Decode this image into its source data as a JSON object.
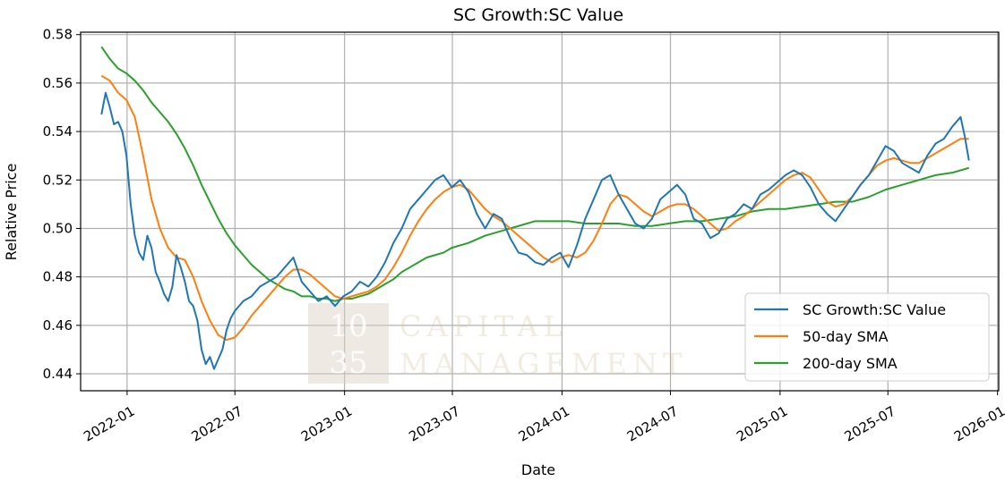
{
  "chart_data": {
    "type": "line",
    "title": "SC Growth:SC Value",
    "xlabel": "Date",
    "ylabel": "Relative Price",
    "xlim": [
      "2021-10-15",
      "2026-01-03"
    ],
    "ylim": [
      0.433,
      0.581
    ],
    "grid": true,
    "legend_position": "lower-right",
    "x_ticks": [
      "2022-01",
      "2022-07",
      "2023-01",
      "2023-07",
      "2024-01",
      "2024-07",
      "2025-01",
      "2025-07",
      "2026-01"
    ],
    "x_tick_dates": [
      "2022-01-01",
      "2022-07-01",
      "2023-01-01",
      "2023-07-01",
      "2024-01-01",
      "2024-07-01",
      "2025-01-01",
      "2025-07-01",
      "2026-01-01"
    ],
    "y_ticks": [
      "0.44",
      "0.46",
      "0.48",
      "0.50",
      "0.52",
      "0.54",
      "0.56",
      "0.58"
    ],
    "y_tick_values": [
      0.44,
      0.46,
      0.48,
      0.5,
      0.52,
      0.54,
      0.56,
      0.58
    ],
    "series": [
      {
        "name": "SC Growth:SC Value",
        "color": "#1f77b4",
        "x": [
          "2021-11-19",
          "2021-11-26",
          "2021-12-03",
          "2021-12-10",
          "2021-12-17",
          "2021-12-24",
          "2021-12-31",
          "2022-01-07",
          "2022-01-14",
          "2022-01-21",
          "2022-01-28",
          "2022-02-04",
          "2022-02-11",
          "2022-02-18",
          "2022-02-25",
          "2022-03-04",
          "2022-03-11",
          "2022-03-18",
          "2022-03-25",
          "2022-04-01",
          "2022-04-08",
          "2022-04-15",
          "2022-04-22",
          "2022-04-29",
          "2022-05-06",
          "2022-05-13",
          "2022-05-20",
          "2022-05-27",
          "2022-06-03",
          "2022-06-10",
          "2022-06-17",
          "2022-06-24",
          "2022-07-01",
          "2022-07-15",
          "2022-07-29",
          "2022-08-12",
          "2022-08-26",
          "2022-09-09",
          "2022-09-23",
          "2022-10-07",
          "2022-10-21",
          "2022-11-04",
          "2022-11-18",
          "2022-12-02",
          "2022-12-16",
          "2022-12-30",
          "2023-01-13",
          "2023-01-27",
          "2023-02-10",
          "2023-02-24",
          "2023-03-10",
          "2023-03-24",
          "2023-04-07",
          "2023-04-21",
          "2023-05-05",
          "2023-05-19",
          "2023-06-02",
          "2023-06-16",
          "2023-06-30",
          "2023-07-14",
          "2023-07-28",
          "2023-08-11",
          "2023-08-25",
          "2023-09-08",
          "2023-09-22",
          "2023-10-06",
          "2023-10-20",
          "2023-11-03",
          "2023-11-17",
          "2023-12-01",
          "2023-12-15",
          "2023-12-29",
          "2024-01-12",
          "2024-01-26",
          "2024-02-09",
          "2024-02-23",
          "2024-03-08",
          "2024-03-22",
          "2024-04-05",
          "2024-04-19",
          "2024-05-03",
          "2024-05-17",
          "2024-05-31",
          "2024-06-14",
          "2024-06-28",
          "2024-07-12",
          "2024-07-26",
          "2024-08-09",
          "2024-08-23",
          "2024-09-06",
          "2024-09-20",
          "2024-10-04",
          "2024-10-18",
          "2024-11-01",
          "2024-11-15",
          "2024-11-29",
          "2024-12-13",
          "2024-12-27",
          "2025-01-10",
          "2025-01-24",
          "2025-02-07",
          "2025-02-21",
          "2025-03-07",
          "2025-03-21",
          "2025-04-04",
          "2025-04-18",
          "2025-05-02",
          "2025-05-16",
          "2025-05-30",
          "2025-06-13",
          "2025-06-27",
          "2025-07-11",
          "2025-07-25",
          "2025-08-08",
          "2025-08-22",
          "2025-09-05",
          "2025-09-19",
          "2025-10-03",
          "2025-10-17",
          "2025-10-31",
          "2025-11-07",
          "2025-11-14"
        ],
        "y": [
          0.547,
          0.556,
          0.55,
          0.543,
          0.544,
          0.54,
          0.53,
          0.51,
          0.497,
          0.49,
          0.487,
          0.497,
          0.492,
          0.482,
          0.478,
          0.473,
          0.47,
          0.476,
          0.489,
          0.484,
          0.478,
          0.47,
          0.468,
          0.462,
          0.45,
          0.444,
          0.447,
          0.442,
          0.446,
          0.45,
          0.458,
          0.463,
          0.466,
          0.47,
          0.472,
          0.476,
          0.478,
          0.48,
          0.484,
          0.488,
          0.478,
          0.474,
          0.47,
          0.472,
          0.468,
          0.472,
          0.474,
          0.478,
          0.476,
          0.48,
          0.486,
          0.494,
          0.5,
          0.508,
          0.512,
          0.516,
          0.52,
          0.522,
          0.517,
          0.52,
          0.515,
          0.506,
          0.5,
          0.506,
          0.504,
          0.496,
          0.49,
          0.489,
          0.486,
          0.485,
          0.488,
          0.49,
          0.484,
          0.493,
          0.504,
          0.512,
          0.52,
          0.522,
          0.514,
          0.508,
          0.502,
          0.5,
          0.504,
          0.512,
          0.515,
          0.518,
          0.514,
          0.504,
          0.502,
          0.496,
          0.498,
          0.504,
          0.506,
          0.51,
          0.508,
          0.514,
          0.516,
          0.519,
          0.522,
          0.524,
          0.522,
          0.517,
          0.51,
          0.506,
          0.503,
          0.508,
          0.513,
          0.518,
          0.522,
          0.528,
          0.534,
          0.532,
          0.527,
          0.525,
          0.523,
          0.53,
          0.535,
          0.537,
          0.542,
          0.546,
          0.538,
          0.528
        ]
      },
      {
        "name": "50-day SMA",
        "color": "#ff7f0e",
        "x": [
          "2021-11-19",
          "2021-12-03",
          "2021-12-17",
          "2021-12-31",
          "2022-01-14",
          "2022-01-28",
          "2022-02-11",
          "2022-02-25",
          "2022-03-11",
          "2022-03-25",
          "2022-04-08",
          "2022-04-22",
          "2022-05-06",
          "2022-05-20",
          "2022-06-03",
          "2022-06-17",
          "2022-07-01",
          "2022-07-15",
          "2022-07-29",
          "2022-08-12",
          "2022-08-26",
          "2022-09-09",
          "2022-09-23",
          "2022-10-07",
          "2022-10-21",
          "2022-11-04",
          "2022-11-18",
          "2022-12-02",
          "2022-12-16",
          "2022-12-30",
          "2023-01-13",
          "2023-01-27",
          "2023-02-10",
          "2023-02-24",
          "2023-03-10",
          "2023-03-24",
          "2023-04-07",
          "2023-04-21",
          "2023-05-05",
          "2023-05-19",
          "2023-06-02",
          "2023-06-16",
          "2023-06-30",
          "2023-07-14",
          "2023-07-28",
          "2023-08-11",
          "2023-08-25",
          "2023-09-08",
          "2023-09-22",
          "2023-10-06",
          "2023-10-20",
          "2023-11-03",
          "2023-11-17",
          "2023-12-01",
          "2023-12-15",
          "2023-12-29",
          "2024-01-12",
          "2024-01-26",
          "2024-02-09",
          "2024-02-23",
          "2024-03-08",
          "2024-03-22",
          "2024-04-05",
          "2024-04-19",
          "2024-05-03",
          "2024-05-17",
          "2024-05-31",
          "2024-06-14",
          "2024-06-28",
          "2024-07-12",
          "2024-07-26",
          "2024-08-09",
          "2024-08-23",
          "2024-09-06",
          "2024-09-20",
          "2024-10-04",
          "2024-10-18",
          "2024-11-01",
          "2024-11-15",
          "2024-11-29",
          "2024-12-13",
          "2024-12-27",
          "2025-01-10",
          "2025-01-24",
          "2025-02-07",
          "2025-02-21",
          "2025-03-07",
          "2025-03-21",
          "2025-04-04",
          "2025-04-18",
          "2025-05-02",
          "2025-05-16",
          "2025-05-30",
          "2025-06-13",
          "2025-06-27",
          "2025-07-11",
          "2025-07-25",
          "2025-08-08",
          "2025-08-22",
          "2025-09-05",
          "2025-09-19",
          "2025-10-03",
          "2025-10-17",
          "2025-10-31",
          "2025-11-14"
        ],
        "y": [
          0.563,
          0.561,
          0.556,
          0.553,
          0.546,
          0.53,
          0.512,
          0.5,
          0.492,
          0.488,
          0.487,
          0.48,
          0.47,
          0.462,
          0.456,
          0.454,
          0.455,
          0.459,
          0.464,
          0.468,
          0.472,
          0.476,
          0.48,
          0.483,
          0.483,
          0.481,
          0.478,
          0.475,
          0.472,
          0.471,
          0.472,
          0.473,
          0.474,
          0.476,
          0.479,
          0.484,
          0.49,
          0.497,
          0.503,
          0.508,
          0.512,
          0.515,
          0.517,
          0.518,
          0.516,
          0.512,
          0.508,
          0.505,
          0.503,
          0.5,
          0.497,
          0.494,
          0.491,
          0.488,
          0.486,
          0.488,
          0.489,
          0.488,
          0.49,
          0.495,
          0.502,
          0.51,
          0.514,
          0.513,
          0.51,
          0.507,
          0.505,
          0.507,
          0.509,
          0.51,
          0.51,
          0.508,
          0.505,
          0.502,
          0.499,
          0.5,
          0.503,
          0.505,
          0.508,
          0.511,
          0.514,
          0.517,
          0.52,
          0.522,
          0.523,
          0.521,
          0.516,
          0.511,
          0.509,
          0.51,
          0.513,
          0.518,
          0.522,
          0.526,
          0.528,
          0.529,
          0.528,
          0.527,
          0.527,
          0.529,
          0.531,
          0.533,
          0.535,
          0.537,
          0.537
        ]
      },
      {
        "name": "200-day SMA",
        "color": "#2ca02c",
        "x": [
          "2021-11-19",
          "2021-12-03",
          "2021-12-17",
          "2021-12-31",
          "2022-01-14",
          "2022-01-28",
          "2022-02-11",
          "2022-02-25",
          "2022-03-11",
          "2022-03-25",
          "2022-04-08",
          "2022-04-22",
          "2022-05-06",
          "2022-05-20",
          "2022-06-03",
          "2022-06-17",
          "2022-07-01",
          "2022-07-15",
          "2022-07-29",
          "2022-08-12",
          "2022-08-26",
          "2022-09-09",
          "2022-09-23",
          "2022-10-07",
          "2022-10-21",
          "2022-11-04",
          "2022-11-18",
          "2022-12-02",
          "2022-12-16",
          "2022-12-30",
          "2023-01-13",
          "2023-01-27",
          "2023-02-10",
          "2023-02-24",
          "2023-03-10",
          "2023-03-24",
          "2023-04-07",
          "2023-04-21",
          "2023-05-05",
          "2023-05-19",
          "2023-06-02",
          "2023-06-16",
          "2023-06-30",
          "2023-07-28",
          "2023-08-25",
          "2023-09-22",
          "2023-10-20",
          "2023-11-17",
          "2023-12-15",
          "2024-01-12",
          "2024-02-09",
          "2024-03-08",
          "2024-04-05",
          "2024-05-03",
          "2024-05-31",
          "2024-06-28",
          "2024-07-26",
          "2024-08-23",
          "2024-09-20",
          "2024-10-18",
          "2024-11-15",
          "2024-12-13",
          "2025-01-10",
          "2025-02-07",
          "2025-03-07",
          "2025-04-04",
          "2025-05-02",
          "2025-05-30",
          "2025-06-27",
          "2025-07-25",
          "2025-08-22",
          "2025-09-19",
          "2025-10-17",
          "2025-11-14"
        ],
        "y": [
          0.575,
          0.57,
          0.566,
          0.564,
          0.561,
          0.557,
          0.552,
          0.548,
          0.544,
          0.539,
          0.533,
          0.526,
          0.518,
          0.511,
          0.504,
          0.498,
          0.493,
          0.489,
          0.485,
          0.482,
          0.479,
          0.477,
          0.475,
          0.474,
          0.472,
          0.472,
          0.471,
          0.471,
          0.47,
          0.471,
          0.471,
          0.472,
          0.473,
          0.475,
          0.477,
          0.479,
          0.482,
          0.484,
          0.486,
          0.488,
          0.489,
          0.49,
          0.492,
          0.494,
          0.497,
          0.499,
          0.501,
          0.503,
          0.503,
          0.503,
          0.502,
          0.502,
          0.502,
          0.501,
          0.501,
          0.502,
          0.503,
          0.503,
          0.504,
          0.505,
          0.507,
          0.508,
          0.508,
          0.509,
          0.51,
          0.511,
          0.511,
          0.513,
          0.516,
          0.518,
          0.52,
          0.522,
          0.523,
          0.525
        ]
      }
    ]
  },
  "watermark": {
    "logo_line1": "10",
    "logo_line2": "35",
    "company_line1": "CAPITAL",
    "company_line2": "MANAGEMENT"
  }
}
